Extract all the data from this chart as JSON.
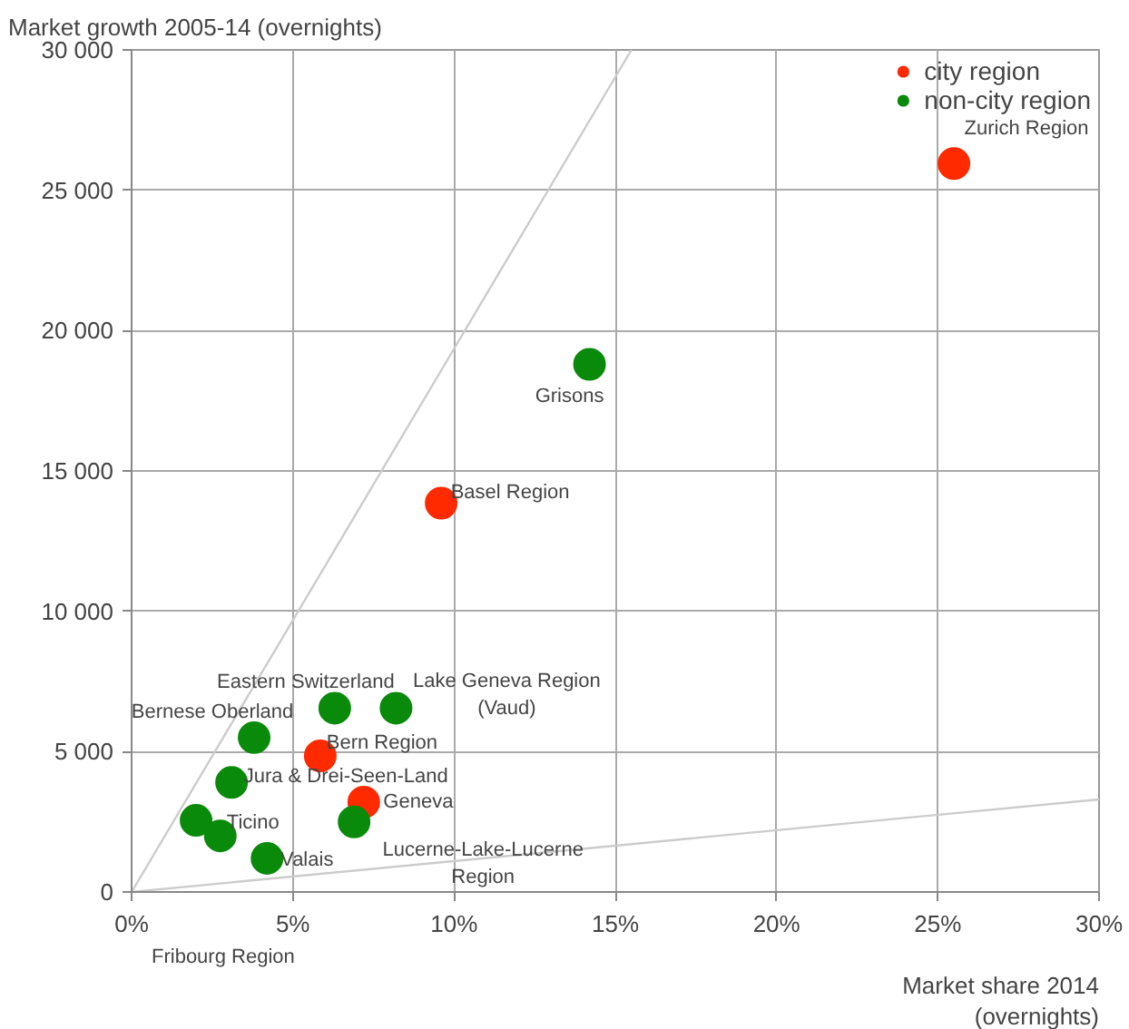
{
  "chart_data": {
    "type": "scatter",
    "xlabel": "Market share 2014\n(overnights)",
    "ylabel": "Market growth 2005-14 (overnights)",
    "xlim": [
      0,
      30
    ],
    "ylim": [
      0,
      30000
    ],
    "xticks": [
      {
        "value": 0,
        "label": "0%"
      },
      {
        "value": 5,
        "label": "5%"
      },
      {
        "value": 10,
        "label": "10%"
      },
      {
        "value": 15,
        "label": "15%"
      },
      {
        "value": 20,
        "label": "20%"
      },
      {
        "value": 25,
        "label": "25%"
      },
      {
        "value": 30,
        "label": "30%"
      }
    ],
    "yticks": [
      0,
      {
        "value": 5000,
        "label": "5 000"
      },
      {
        "value": 10000,
        "label": "10 000"
      },
      {
        "value": 15000,
        "label": "15 000"
      },
      {
        "value": 20000,
        "label": "20 000"
      },
      {
        "value": 25000,
        "label": "25 000"
      },
      {
        "value": 30000,
        "label": "30 000"
      }
    ],
    "grid": true,
    "legend": "top right",
    "marker": "circle",
    "series": [
      {
        "name": "city region",
        "color": "#ff2a00",
        "x": [
          25.5,
          9.6,
          5.85,
          7.2
        ],
        "values": [
          25950,
          13850,
          4850,
          3200
        ]
      },
      {
        "name": "non-city region",
        "color": "#0a8a0a",
        "x": [
          14.2,
          6.3,
          8.2,
          3.8,
          3.1,
          6.9,
          2.0,
          2.75,
          4.2
        ],
        "values": [
          18800,
          6550,
          6550,
          5500,
          3900,
          2500,
          2550,
          2000,
          1200
        ]
      },
      {
        "type": "line",
        "color": "#cccccc",
        "marker": "none",
        "x": [
          0,
          15.5
        ],
        "values": [
          0,
          30000
        ]
      },
      {
        "type": "line",
        "color": "#cccccc",
        "marker": "none",
        "x": [
          0,
          30
        ],
        "values": [
          0,
          3300
        ]
      }
    ],
    "annotations": [
      {
        "text": "Zurich Region",
        "x": 25.5,
        "y": 25950
      },
      {
        "text": "Grisons",
        "x": 14.2,
        "y": 18800
      },
      {
        "text": "Basel Region",
        "x": 9.6,
        "y": 13850
      },
      {
        "text": "Eastern Switzerland",
        "x": 6.3,
        "y": 6550
      },
      {
        "text": "Lake Geneva Region\n(Vaud)",
        "x": 8.2,
        "y": 6550
      },
      {
        "text": "Bernese Oberland",
        "x": 3.8,
        "y": 5500
      },
      {
        "text": "Bern Region",
        "x": 5.85,
        "y": 4850
      },
      {
        "text": "Jura & Drei-Seen-Land",
        "x": 3.1,
        "y": 3900
      },
      {
        "text": "Geneva",
        "x": 7.2,
        "y": 3200
      },
      {
        "text": "Lucerne-Lake-Lucerne\nRegion",
        "x": 6.9,
        "y": 2500
      },
      {
        "text": "Ticino",
        "x": 2.75,
        "y": 2000
      },
      {
        "text": "Valais",
        "x": 4.2,
        "y": 1200
      },
      "Fribourg Region"
    ]
  }
}
